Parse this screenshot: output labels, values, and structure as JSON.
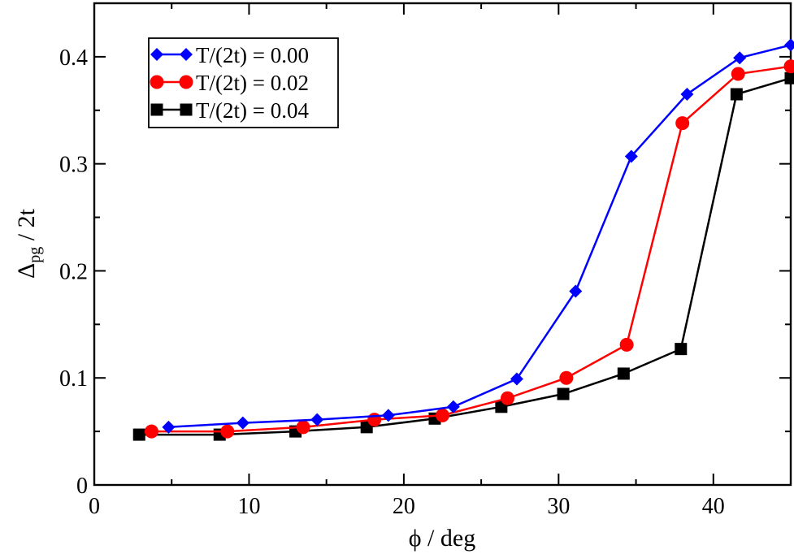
{
  "chart_data": {
    "type": "line",
    "title": "",
    "xlabel": "ϕ / deg",
    "ylabel_main": "Δ",
    "ylabel_sub": "pg",
    "ylabel_tail": " / 2t",
    "xlim": [
      0,
      45
    ],
    "ylim": [
      0,
      0.45
    ],
    "xticks": [
      0,
      10,
      20,
      30,
      40
    ],
    "xtick_labels": [
      "0",
      "10",
      "20",
      "30",
      "40"
    ],
    "yticks": [
      0,
      0.1,
      0.2,
      0.3,
      0.4
    ],
    "ytick_labels": [
      "0",
      "0.1",
      "0.2",
      "0.3",
      "0.4"
    ],
    "legend_position": "top-left",
    "series": [
      {
        "name": "T/(2t) = 0.00",
        "color": "#0000ff",
        "marker": "diamond",
        "x": [
          4.8,
          9.6,
          14.4,
          19.0,
          23.2,
          27.3,
          31.1,
          34.7,
          38.3,
          41.7,
          45.0
        ],
        "y": [
          0.054,
          0.058,
          0.061,
          0.065,
          0.073,
          0.099,
          0.181,
          0.307,
          0.365,
          0.399,
          0.411
        ]
      },
      {
        "name": "T/(2t) = 0.02",
        "color": "#ff0000",
        "marker": "circle",
        "x": [
          3.7,
          8.6,
          13.5,
          18.1,
          22.5,
          26.7,
          30.5,
          34.4,
          38.0,
          41.6,
          45.0
        ],
        "y": [
          0.05,
          0.05,
          0.054,
          0.061,
          0.065,
          0.081,
          0.1,
          0.131,
          0.338,
          0.384,
          0.391
        ]
      },
      {
        "name": "T/(2t) = 0.04",
        "color": "#000000",
        "marker": "square",
        "x": [
          2.9,
          8.1,
          13.0,
          17.6,
          22.0,
          26.3,
          30.3,
          34.2,
          37.9,
          41.5,
          45.0
        ],
        "y": [
          0.047,
          0.047,
          0.05,
          0.054,
          0.062,
          0.073,
          0.085,
          0.104,
          0.127,
          0.365,
          0.38
        ]
      }
    ]
  }
}
